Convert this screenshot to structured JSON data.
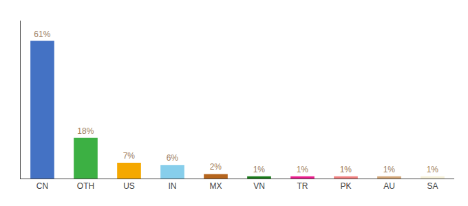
{
  "chart_data": {
    "type": "bar",
    "categories": [
      "CN",
      "OTH",
      "US",
      "IN",
      "MX",
      "VN",
      "TR",
      "PK",
      "AU",
      "SA"
    ],
    "values": [
      61,
      18,
      7,
      6,
      2,
      1,
      1,
      1,
      1,
      1
    ],
    "value_labels": [
      "61%",
      "18%",
      "7%",
      "6%",
      "2%",
      "1%",
      "1%",
      "1%",
      "1%",
      "1%"
    ],
    "colors": [
      "#4472c4",
      "#3cb043",
      "#f5a800",
      "#87ceeb",
      "#b5651d",
      "#1a7a1a",
      "#e91e8c",
      "#f08080",
      "#d2a679",
      "#f5f0d8"
    ],
    "ylim": [
      0,
      70
    ],
    "grid": false,
    "data_labels": true,
    "tick_labels": "x"
  }
}
